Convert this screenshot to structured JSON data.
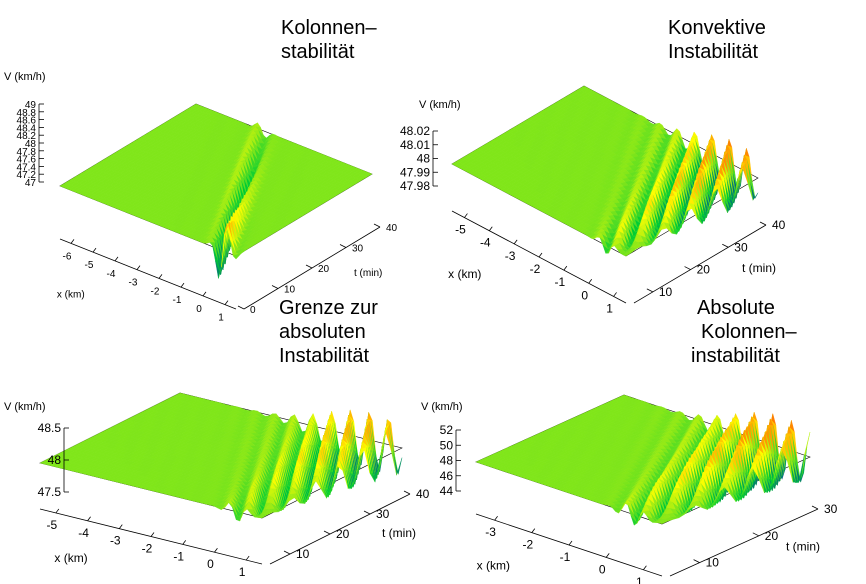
{
  "chart_data": [
    {
      "type": "surface3d",
      "title": [
        "Kolonnen–",
        "stabilität"
      ],
      "zlabel": "V (km/h)",
      "xlabel": "x (km)",
      "ylabel": "t (min)",
      "x_ticks": [
        -6,
        -5,
        -4,
        -3,
        -2,
        -1,
        0,
        1
      ],
      "y_ticks": [
        0,
        10,
        20,
        30,
        40
      ],
      "z_ticks": [
        "49",
        "48.8",
        "48.6",
        "48.4",
        "48.2",
        "48",
        "47.8",
        "47.6",
        "47.4",
        "47.2",
        "47"
      ],
      "xlim": [
        -6.5,
        1.5
      ],
      "ylim": [
        0,
        40
      ],
      "zlim": [
        47,
        49
      ],
      "baseline": 48,
      "behavior": "single localized speed perturbation near x≈0 that decays and drifts upstream over time",
      "wave": {
        "amplitude": 1.0,
        "wavelength": 0.9,
        "packets": 1,
        "growth": -1
      },
      "colors": [
        "#0000cc",
        "#00cc33",
        "#ffff00",
        "#ff0000"
      ]
    },
    {
      "type": "surface3d",
      "title": [
        "Konvektive",
        "Instabilität"
      ],
      "zlabel": "V (km/h)",
      "xlabel": "x (km)",
      "ylabel": "t (min)",
      "x_ticks": [
        -5,
        -4,
        -3,
        -2,
        -1,
        0,
        1
      ],
      "y_ticks": [
        10,
        20,
        30,
        40
      ],
      "z_ticks": [
        "48.02",
        "48.01",
        "48",
        "47.99",
        "47.98"
      ],
      "xlim": [
        -5.5,
        1.5
      ],
      "ylim": [
        5,
        40
      ],
      "zlim": [
        47.975,
        48.025
      ],
      "baseline": 48,
      "behavior": "oscillation packet grows while travelling upstream; origin region returns to 48",
      "wave": {
        "amplitude": 0.02,
        "wavelength": 0.7,
        "packets": 5,
        "growth": 1
      },
      "colors": [
        "#0000cc",
        "#00cc33",
        "#ffff00",
        "#ff0000"
      ]
    },
    {
      "type": "surface3d",
      "title": [
        "Grenze zur",
        "absoluten",
        "Instabilität"
      ],
      "zlabel": "V (km/h)",
      "xlabel": "x (km)",
      "ylabel": "t (min)",
      "x_ticks": [
        -5,
        -4,
        -3,
        -2,
        -1,
        0,
        1
      ],
      "y_ticks": [
        10,
        20,
        30,
        40
      ],
      "z_ticks": [
        "48.5",
        "48",
        "47.5"
      ],
      "xlim": [
        -5.5,
        1.5
      ],
      "ylim": [
        5,
        40
      ],
      "zlim": [
        47.5,
        48.5
      ],
      "baseline": 48,
      "behavior": "oscillation packet with upstream front moving and downstream edge fixed near origin",
      "wave": {
        "amplitude": 0.5,
        "wavelength": 0.6,
        "packets": 6,
        "growth": 0.5
      },
      "colors": [
        "#0000cc",
        "#00cc33",
        "#ffff00",
        "#ff0000"
      ]
    },
    {
      "type": "surface3d",
      "title": [
        "Absolute",
        "Kolonnen–",
        "instabilität"
      ],
      "zlabel": "V (km/h)",
      "xlabel": "x (km)",
      "ylabel": "t (min)",
      "x_ticks": [
        -3,
        -2,
        -1,
        0,
        1
      ],
      "y_ticks": [
        10,
        20,
        30
      ],
      "z_ticks": [
        "52",
        "50",
        "48",
        "46",
        "44"
      ],
      "xlim": [
        -3.5,
        1.5
      ],
      "ylim": [
        5,
        30
      ],
      "zlim": [
        43.5,
        52.5
      ],
      "baseline": 48,
      "behavior": "oscillation grows in place and spreads both upstream and downstream",
      "wave": {
        "amplitude": 4,
        "wavelength": 0.5,
        "packets": 6,
        "growth": 1
      },
      "colors": [
        "#0000cc",
        "#00cc33",
        "#ffff00",
        "#ff0000"
      ]
    }
  ]
}
